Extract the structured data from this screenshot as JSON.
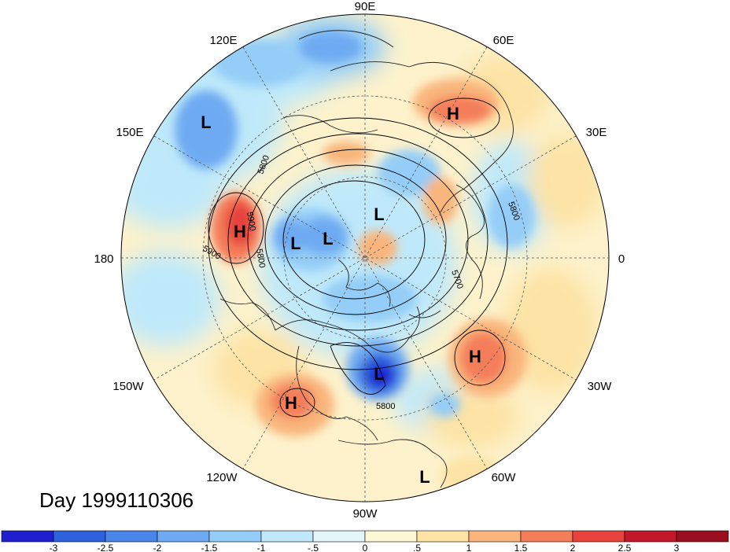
{
  "figure": {
    "day_label": "Day 1999110306",
    "center_label": "",
    "lon_labels": [
      {
        "text": "90E",
        "deg": 90
      },
      {
        "text": "60E",
        "deg": 60
      },
      {
        "text": "30E",
        "deg": 30
      },
      {
        "text": "0",
        "deg": 0
      },
      {
        "text": "30W",
        "deg": -30
      },
      {
        "text": "60W",
        "deg": -60
      },
      {
        "text": "90W",
        "deg": -90
      },
      {
        "text": "120W",
        "deg": -120
      },
      {
        "text": "150W",
        "deg": -150
      },
      {
        "text": "180",
        "deg": 180
      },
      {
        "text": "150E",
        "deg": 150
      },
      {
        "text": "120E",
        "deg": 120
      }
    ],
    "pressure_centers": [
      {
        "type": "L",
        "at": "east-siberia"
      },
      {
        "type": "H",
        "at": "west-russia"
      },
      {
        "type": "H",
        "at": "bering-sea"
      },
      {
        "type": "L",
        "at": "arctic-1"
      },
      {
        "type": "L",
        "at": "arctic-2"
      },
      {
        "type": "L",
        "at": "arctic-3"
      },
      {
        "type": "L",
        "at": "great-lakes"
      },
      {
        "type": "H",
        "at": "north-atlantic"
      },
      {
        "type": "H",
        "at": "northeast-pacific"
      },
      {
        "type": "L",
        "at": "south-america"
      }
    ],
    "contour_labels": [
      "5800",
      "5900",
      "5900",
      "5800",
      "5800",
      "5700",
      "5800"
    ]
  },
  "colorbar": {
    "ticks": [
      "-3",
      "-2.5",
      "-2",
      "-1.5",
      "-1",
      "-.5",
      "0",
      ".5",
      "1",
      "1.5",
      "2",
      "2.5",
      "3"
    ],
    "colors": [
      "#1f1fcf",
      "#2e62dd",
      "#4a86ea",
      "#6eaaf2",
      "#94cdf7",
      "#bfe9fa",
      "#e5f6fb",
      "#fdf7d6",
      "#fde3a5",
      "#f9b57c",
      "#f47d5a",
      "#e7433c",
      "#c2182a",
      "#9a0e20"
    ]
  }
}
